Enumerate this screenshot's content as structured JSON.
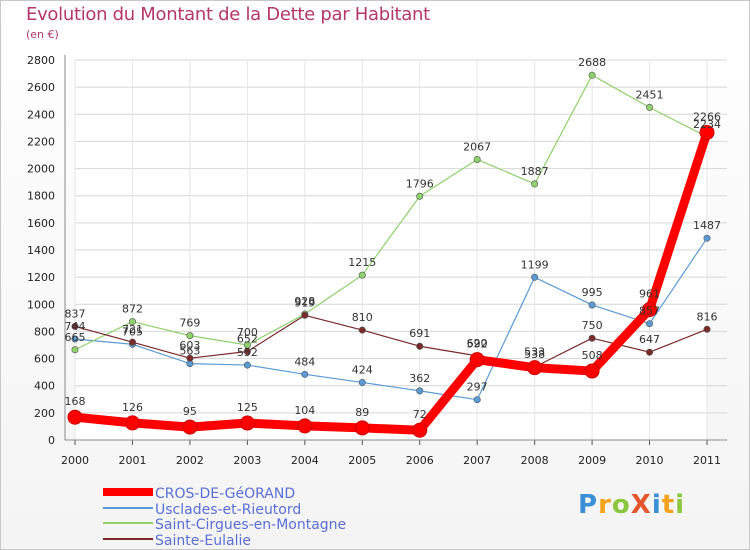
{
  "title": "Evolution du Montant de la Dette par Habitant",
  "subtitle": "(en €)",
  "logo": {
    "text": "ProXiti"
  },
  "chart_data": {
    "type": "line",
    "title": "Evolution du Montant de la Dette par Habitant",
    "ylabel": "(en €)",
    "xlabel": "",
    "x": [
      "2000",
      "2001",
      "2002",
      "2003",
      "2004",
      "2005",
      "2006",
      "2007",
      "2008",
      "2009",
      "2010",
      "2011"
    ],
    "yticks": [
      0,
      200,
      400,
      600,
      800,
      1000,
      1200,
      1400,
      1600,
      1800,
      2000,
      2200,
      2400,
      2600,
      2800
    ],
    "ylim": [
      0,
      2800
    ],
    "grid": true,
    "legend": "bottom-left",
    "series": [
      {
        "name": "CROS-DE-GéORAND",
        "color": "#ff0000",
        "values": [
          168,
          126,
          95,
          125,
          104,
          89,
          72,
          592,
          533,
          508,
          961,
          2266
        ]
      },
      {
        "name": "Usclades-et-Rieutord",
        "color": "#5b9bd5",
        "values": [
          744,
          705,
          563,
          552,
          484,
          424,
          362,
          297,
          1199,
          995,
          857,
          1487
        ]
      },
      {
        "name": "Saint-Cirgues-en-Montagne",
        "color": "#8fd16b",
        "values": [
          665,
          872,
          769,
          700,
          928,
          1215,
          1796,
          2067,
          1887,
          2688,
          2451,
          2234
        ]
      },
      {
        "name": "Sainte-Eulalie",
        "color": "#7b2a2a",
        "values": [
          837,
          721,
          603,
          652,
          919,
          810,
          691,
          620,
          538,
          750,
          647,
          816
        ]
      }
    ]
  }
}
